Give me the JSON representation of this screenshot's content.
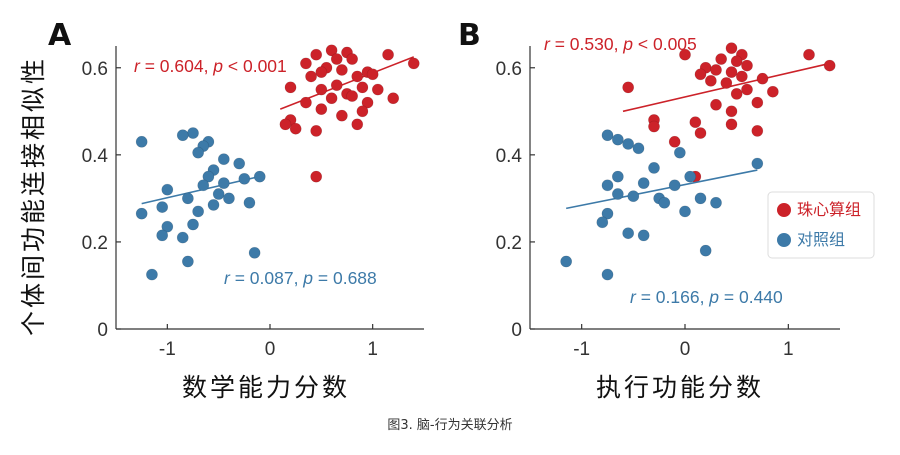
{
  "caption": "图3. 脑-行为关联分析",
  "colors": {
    "expert": "#cc2229",
    "control": "#3d7aa8",
    "axis": "#333333"
  },
  "legend": {
    "items": [
      {
        "label": "珠心算组",
        "color": "#cc2229"
      },
      {
        "label": "对照组",
        "color": "#3d7aa8"
      }
    ]
  },
  "chart_data": [
    {
      "panel": "A",
      "type": "scatter",
      "xlabel": "数学能力分数",
      "ylabel": "个体间功能连接相似性",
      "xlim": [
        -1.5,
        1.5
      ],
      "ylim": [
        0,
        0.65
      ],
      "xticks": [
        -1,
        0,
        1
      ],
      "xtick_labels": [
        "-1",
        "0",
        "1"
      ],
      "yticks": [
        0,
        0.2,
        0.4,
        0.6
      ],
      "ytick_labels": [
        "0",
        "0.2",
        "0.4",
        "0.6"
      ],
      "series": [
        {
          "name": "珠心算组",
          "color": "#cc2229",
          "stat": {
            "r": "0.604",
            "p": "< 0.001"
          },
          "fit": {
            "x": [
              0.1,
              1.4
            ],
            "y": [
              0.505,
              0.625
            ]
          },
          "points": [
            [
              0.6,
              0.64
            ],
            [
              0.75,
              0.635
            ],
            [
              0.45,
              0.63
            ],
            [
              1.15,
              0.63
            ],
            [
              0.65,
              0.62
            ],
            [
              0.8,
              0.62
            ],
            [
              0.35,
              0.61
            ],
            [
              0.55,
              0.6
            ],
            [
              0.5,
              0.59
            ],
            [
              1.4,
              0.61
            ],
            [
              0.7,
              0.595
            ],
            [
              0.95,
              0.59
            ],
            [
              1.0,
              0.585
            ],
            [
              0.4,
              0.58
            ],
            [
              0.85,
              0.58
            ],
            [
              0.65,
              0.56
            ],
            [
              0.2,
              0.555
            ],
            [
              0.5,
              0.55
            ],
            [
              0.9,
              0.555
            ],
            [
              1.05,
              0.55
            ],
            [
              0.75,
              0.54
            ],
            [
              0.8,
              0.535
            ],
            [
              0.6,
              0.53
            ],
            [
              1.2,
              0.53
            ],
            [
              0.35,
              0.52
            ],
            [
              0.95,
              0.52
            ],
            [
              0.5,
              0.505
            ],
            [
              0.9,
              0.5
            ],
            [
              0.7,
              0.49
            ],
            [
              0.2,
              0.48
            ],
            [
              0.15,
              0.47
            ],
            [
              0.85,
              0.47
            ],
            [
              0.25,
              0.46
            ],
            [
              0.45,
              0.455
            ],
            [
              0.45,
              0.35
            ]
          ]
        },
        {
          "name": "对照组",
          "color": "#3d7aa8",
          "stat": {
            "r": "0.087",
            "p": "0.688"
          },
          "fit": {
            "x": [
              -1.25,
              -0.05
            ],
            "y": [
              0.288,
              0.353
            ]
          },
          "points": [
            [
              -0.75,
              0.45
            ],
            [
              -0.85,
              0.445
            ],
            [
              -0.6,
              0.43
            ],
            [
              -1.25,
              0.43
            ],
            [
              -0.65,
              0.42
            ],
            [
              -0.7,
              0.405
            ],
            [
              -0.45,
              0.39
            ],
            [
              -0.3,
              0.38
            ],
            [
              -0.55,
              0.365
            ],
            [
              -0.6,
              0.35
            ],
            [
              -0.1,
              0.35
            ],
            [
              -0.25,
              0.345
            ],
            [
              -0.45,
              0.335
            ],
            [
              -0.65,
              0.33
            ],
            [
              -1.0,
              0.32
            ],
            [
              -0.5,
              0.31
            ],
            [
              -0.8,
              0.3
            ],
            [
              -0.4,
              0.3
            ],
            [
              -0.55,
              0.285
            ],
            [
              -0.2,
              0.29
            ],
            [
              -0.7,
              0.27
            ],
            [
              -1.05,
              0.28
            ],
            [
              -1.25,
              0.265
            ],
            [
              -0.75,
              0.24
            ],
            [
              -1.0,
              0.235
            ],
            [
              -1.05,
              0.215
            ],
            [
              -0.85,
              0.21
            ],
            [
              -0.15,
              0.175
            ],
            [
              -0.8,
              0.155
            ],
            [
              -1.15,
              0.125
            ]
          ]
        }
      ]
    },
    {
      "panel": "B",
      "type": "scatter",
      "xlabel": "执行功能分数",
      "ylabel": "",
      "xlim": [
        -1.5,
        1.5
      ],
      "ylim": [
        0,
        0.65
      ],
      "xticks": [
        -1,
        0,
        1
      ],
      "xtick_labels": [
        "-1",
        "0",
        "1"
      ],
      "yticks": [
        0,
        0.2,
        0.4,
        0.6
      ],
      "ytick_labels": [
        "0",
        "0.2",
        "0.4",
        "0.6"
      ],
      "series": [
        {
          "name": "珠心算组",
          "color": "#cc2229",
          "stat": {
            "r": "0.530",
            "p": "< 0.005"
          },
          "fit": {
            "x": [
              -0.6,
              1.4
            ],
            "y": [
              0.5,
              0.61
            ]
          },
          "points": [
            [
              0.45,
              0.645
            ],
            [
              0.0,
              0.63
            ],
            [
              0.55,
              0.63
            ],
            [
              1.2,
              0.63
            ],
            [
              0.35,
              0.62
            ],
            [
              0.5,
              0.615
            ],
            [
              0.6,
              0.605
            ],
            [
              0.2,
              0.6
            ],
            [
              0.3,
              0.595
            ],
            [
              1.4,
              0.605
            ],
            [
              0.45,
              0.59
            ],
            [
              0.15,
              0.585
            ],
            [
              0.55,
              0.58
            ],
            [
              0.25,
              0.57
            ],
            [
              0.75,
              0.575
            ],
            [
              0.4,
              0.565
            ],
            [
              -0.55,
              0.555
            ],
            [
              0.6,
              0.55
            ],
            [
              0.85,
              0.545
            ],
            [
              0.5,
              0.54
            ],
            [
              0.7,
              0.52
            ],
            [
              0.3,
              0.515
            ],
            [
              0.45,
              0.5
            ],
            [
              -0.3,
              0.48
            ],
            [
              0.1,
              0.475
            ],
            [
              0.45,
              0.47
            ],
            [
              -0.3,
              0.465
            ],
            [
              0.7,
              0.455
            ],
            [
              0.15,
              0.45
            ],
            [
              -0.1,
              0.43
            ],
            [
              0.1,
              0.35
            ]
          ]
        },
        {
          "name": "对照组",
          "color": "#3d7aa8",
          "stat": {
            "r": "0.166",
            "p": "0.440"
          },
          "fit": {
            "x": [
              -1.15,
              0.7
            ],
            "y": [
              0.277,
              0.365
            ]
          },
          "points": [
            [
              -0.75,
              0.445
            ],
            [
              -0.65,
              0.435
            ],
            [
              -0.55,
              0.425
            ],
            [
              -0.45,
              0.415
            ],
            [
              -0.05,
              0.405
            ],
            [
              -0.3,
              0.37
            ],
            [
              -0.65,
              0.35
            ],
            [
              0.05,
              0.35
            ],
            [
              -0.4,
              0.335
            ],
            [
              -0.75,
              0.33
            ],
            [
              -0.1,
              0.33
            ],
            [
              -0.65,
              0.31
            ],
            [
              -0.5,
              0.305
            ],
            [
              -0.25,
              0.3
            ],
            [
              0.15,
              0.3
            ],
            [
              -0.2,
              0.29
            ],
            [
              0.3,
              0.29
            ],
            [
              0.0,
              0.27
            ],
            [
              -0.75,
              0.265
            ],
            [
              -0.8,
              0.245
            ],
            [
              -0.55,
              0.22
            ],
            [
              -0.4,
              0.215
            ],
            [
              0.2,
              0.18
            ],
            [
              0.7,
              0.38
            ],
            [
              -1.15,
              0.155
            ],
            [
              -0.75,
              0.125
            ]
          ]
        }
      ]
    }
  ]
}
